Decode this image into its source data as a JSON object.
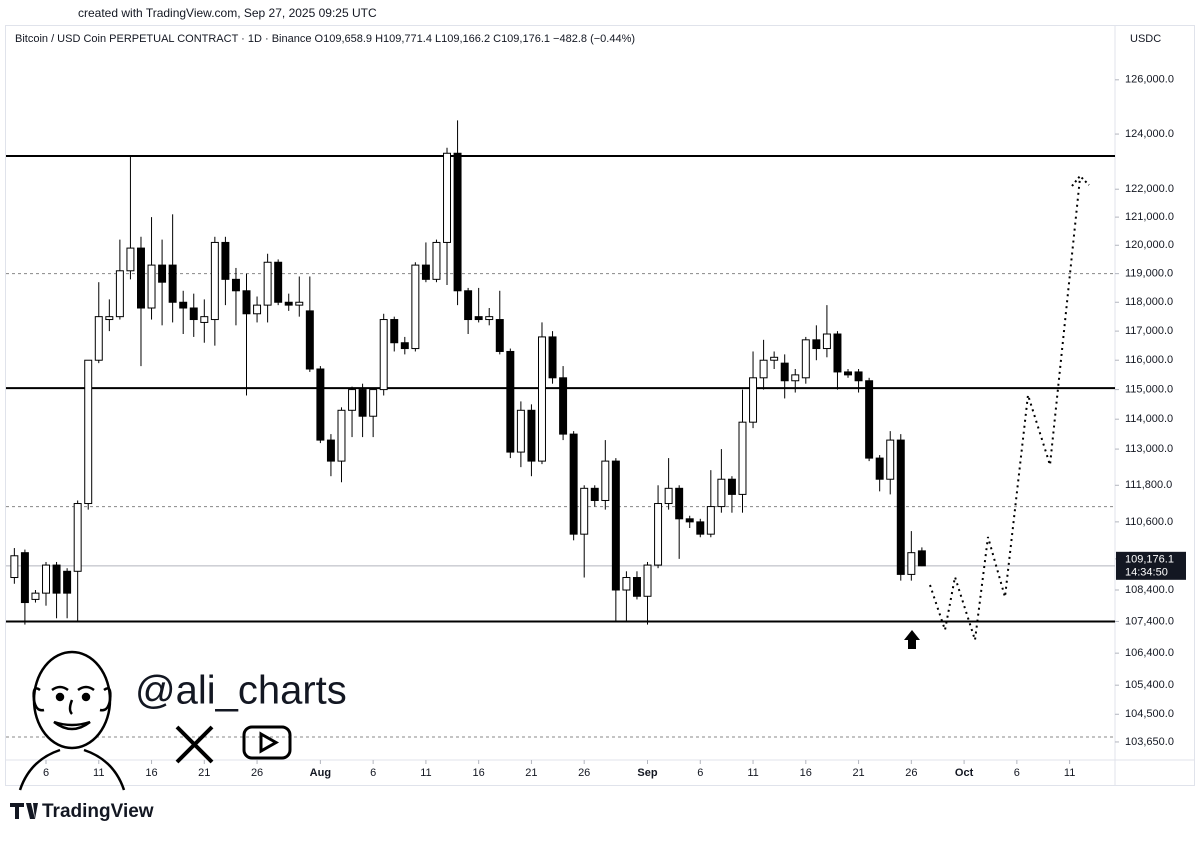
{
  "header": "created with TradingView.com, Sep 27, 2025 09:25 UTC",
  "brand": "TradingView",
  "watermark": "@ali_charts",
  "chart_data": {
    "type": "candlestick",
    "title": "Bitcoin / USD Coin PERPETUAL CONTRACT · 1D · Binance  O109,658.9  H109,771.4  L109,166.2  C109,176.1  −482.8 (−0.44%)",
    "y_axis_label": "USDC",
    "log": true,
    "up_color": "#ffffff",
    "down_color": "#000000",
    "last_price_label": "109,176.1",
    "countdown": "14:34:50",
    "x": [
      3,
      4,
      5,
      6,
      7,
      8,
      9,
      10,
      11,
      12,
      13,
      14,
      15,
      16,
      17,
      18,
      19,
      20,
      21,
      22,
      23,
      24,
      25,
      26,
      27,
      28,
      29,
      30,
      31,
      32,
      33,
      34,
      35,
      36,
      37,
      38,
      39,
      40,
      41,
      42,
      43,
      44,
      45,
      46,
      47,
      48,
      49,
      50,
      51,
      52,
      53,
      54,
      55,
      56,
      57,
      58,
      59,
      60,
      61,
      62,
      63,
      64,
      65,
      66,
      67,
      68,
      69,
      70,
      71,
      72,
      73,
      74,
      75,
      76,
      77,
      78,
      79,
      80,
      81,
      82,
      83,
      84,
      85,
      86,
      87,
      88,
      89
    ],
    "open": [
      108800,
      109600,
      108100,
      108300,
      109200,
      109000,
      109000,
      111200,
      116000,
      117400,
      117500,
      119100,
      119900,
      117800,
      119300,
      119300,
      118000,
      117800,
      117300,
      117400,
      120100,
      118800,
      118400,
      117600,
      117900,
      119400,
      118000,
      117900,
      117700,
      115700,
      113300,
      112600,
      114300,
      115000,
      114100,
      115000,
      117400,
      116600,
      116400,
      119300,
      118800,
      120100,
      123300,
      118400,
      117500,
      117400,
      117400,
      116300,
      112900,
      114300,
      112600,
      116800,
      115400,
      113500,
      110200,
      111700,
      111300,
      112600,
      108400,
      108800,
      108200,
      109200,
      111200,
      111700,
      110700,
      110600,
      110200,
      111100,
      112000,
      111500,
      113900,
      115400,
      116000,
      115900,
      115300,
      115400,
      116700,
      116400,
      116900,
      115600,
      115600,
      115300,
      112700,
      112000,
      113300,
      108900,
      109658.9
    ],
    "high": [
      109750,
      109700,
      108400,
      109300,
      109300,
      109100,
      111300,
      116000,
      118700,
      118100,
      120200,
      123200,
      120300,
      121000,
      120200,
      121100,
      118400,
      118300,
      118100,
      120300,
      120300,
      119200,
      119000,
      118200,
      119700,
      119500,
      118300,
      118900,
      118900,
      115800,
      113500,
      114400,
      115100,
      115200,
      115000,
      117600,
      117500,
      116800,
      119400,
      120100,
      120200,
      123500,
      124500,
      118500,
      118500,
      117800,
      118400,
      116400,
      114600,
      114500,
      117300,
      117000,
      115800,
      113600,
      111800,
      111800,
      113300,
      112700,
      109000,
      109000,
      109300,
      111800,
      112700,
      111800,
      110800,
      110700,
      112300,
      113000,
      112100,
      115000,
      116300,
      116700,
      116300,
      116200,
      115700,
      116800,
      117200,
      117900,
      117000,
      115700,
      115700,
      115400,
      112800,
      113600,
      113500,
      110300,
      109771.4
    ],
    "low": [
      108600,
      107300,
      108000,
      107900,
      107500,
      107500,
      107400,
      111000,
      115900,
      117000,
      117400,
      118800,
      115800,
      117400,
      117200,
      117300,
      116900,
      116800,
      116600,
      116500,
      117900,
      117200,
      114800,
      117300,
      117300,
      117900,
      117700,
      117500,
      115600,
      113200,
      112100,
      111900,
      113400,
      113400,
      113400,
      114800,
      116300,
      116200,
      116300,
      118700,
      118700,
      118600,
      117900,
      116900,
      117300,
      117200,
      116200,
      112700,
      112400,
      112100,
      112500,
      115200,
      113300,
      110000,
      108800,
      111100,
      111000,
      107400,
      107400,
      108100,
      107300,
      109100,
      111000,
      109400,
      110400,
      110100,
      110100,
      110900,
      110900,
      110900,
      113700,
      115000,
      115700,
      114700,
      114900,
      115200,
      116000,
      116100,
      115000,
      115400,
      114900,
      112600,
      111600,
      111500,
      108700,
      108700,
      109166.2
    ],
    "close": [
      109500,
      108000,
      108300,
      109200,
      108300,
      108300,
      111200,
      116000,
      117500,
      117500,
      119100,
      119900,
      117800,
      119300,
      118700,
      118000,
      117800,
      117400,
      117500,
      120100,
      118800,
      118400,
      117600,
      117900,
      119400,
      118000,
      117900,
      118000,
      115700,
      113300,
      112600,
      114300,
      115000,
      114100,
      115000,
      117400,
      116600,
      116400,
      119300,
      118800,
      120100,
      123300,
      118400,
      117400,
      117400,
      117500,
      116300,
      112900,
      114300,
      112600,
      116800,
      115400,
      113500,
      110200,
      111700,
      111300,
      112600,
      108400,
      108800,
      108200,
      109200,
      111200,
      111700,
      110700,
      110600,
      110200,
      111100,
      112000,
      111500,
      113900,
      115400,
      116000,
      116100,
      115300,
      115500,
      116700,
      116400,
      116900,
      115600,
      115500,
      115300,
      112700,
      112000,
      113300,
      108900,
      109600,
      109176.1
    ],
    "levels": [
      {
        "value": 123200,
        "style": "solid"
      },
      {
        "value": 119000,
        "style": "dashed"
      },
      {
        "value": 115050,
        "style": "solid"
      },
      {
        "value": 111100,
        "style": "dashed"
      },
      {
        "value": 107400,
        "style": "solid"
      },
      {
        "value": 103800,
        "style": "dashed"
      }
    ],
    "ylim": [
      103100,
      127300
    ],
    "yticks": [
      {
        "value": 126000,
        "label": "126,000.0"
      },
      {
        "value": 124000,
        "label": "124,000.0"
      },
      {
        "value": 122000,
        "label": "122,000.0"
      },
      {
        "value": 121000,
        "label": "121,000.0"
      },
      {
        "value": 120000,
        "label": "120,000.0"
      },
      {
        "value": 119000,
        "label": "119,000.0"
      },
      {
        "value": 118000,
        "label": "118,000.0"
      },
      {
        "value": 117000,
        "label": "117,000.0"
      },
      {
        "value": 116000,
        "label": "116,000.0"
      },
      {
        "value": 115000,
        "label": "115,000.0"
      },
      {
        "value": 114000,
        "label": "114,000.0"
      },
      {
        "value": 113000,
        "label": "113,000.0"
      },
      {
        "value": 111800,
        "label": "111,800.0"
      },
      {
        "value": 110600,
        "label": "110,600.0"
      },
      {
        "value": 109400,
        "label": "109,400.0"
      },
      {
        "value": 108400,
        "label": "108,400.0"
      },
      {
        "value": 107400,
        "label": "107,400.0"
      },
      {
        "value": 106400,
        "label": "106,400.0"
      },
      {
        "value": 105400,
        "label": "105,400.0"
      },
      {
        "value": 104500,
        "label": "104,500.0"
      },
      {
        "value": 103650,
        "label": "103,650.0"
      }
    ],
    "xlim": [
      1.64,
      107.3
    ],
    "xticks": [
      6,
      11,
      16,
      21,
      26,
      {
        "value": 32,
        "label": "Aug"
      },
      {
        "value": 37,
        "label": "6"
      },
      {
        "value": 42,
        "label": "11"
      },
      {
        "value": 47,
        "label": "16"
      },
      {
        "value": 52,
        "label": "21"
      },
      {
        "value": 57,
        "label": "26"
      },
      {
        "value": 63,
        "label": "Sep"
      },
      {
        "value": 68,
        "label": "6"
      },
      {
        "value": 73,
        "label": "11"
      },
      {
        "value": 78,
        "label": "16"
      },
      {
        "value": 83,
        "label": "21"
      },
      {
        "value": 88,
        "label": "26"
      },
      {
        "value": 93,
        "label": "Oct"
      },
      {
        "value": 98,
        "label": "6"
      },
      {
        "value": 103,
        "label": "11"
      }
    ]
  }
}
